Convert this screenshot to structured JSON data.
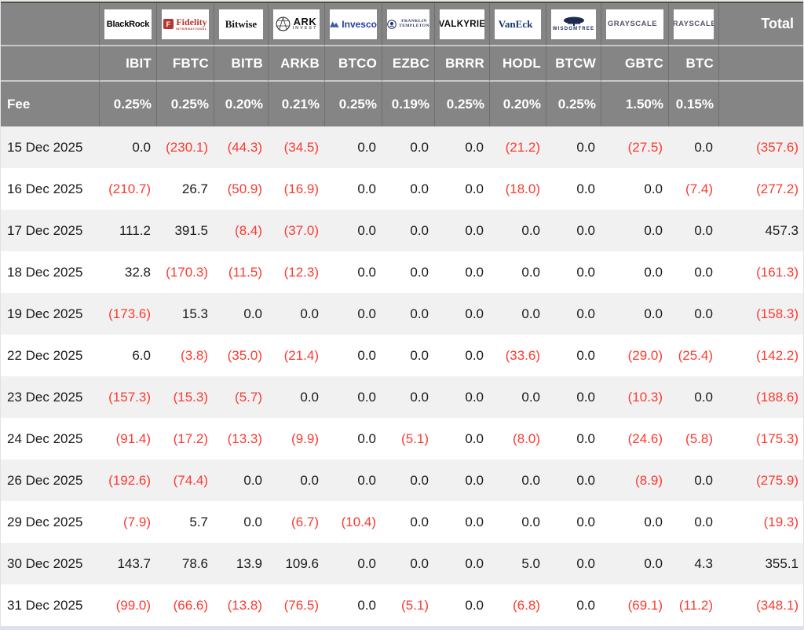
{
  "table": {
    "fee_label": "Fee",
    "total_label": "Total",
    "negative_color": "#fb3a30",
    "header_bg": "#858585",
    "columns": [
      {
        "ticker": "IBIT",
        "fee": "0.25%",
        "issuer": "BlackRock",
        "logo": {
          "style": "blackrock",
          "lines": [
            "BlackRock"
          ]
        }
      },
      {
        "ticker": "FBTC",
        "fee": "0.25%",
        "issuer": "Fidelity",
        "logo": {
          "style": "fidelity",
          "lines": [
            "F",
            "Fidelity",
            "INTERNATIONAL"
          ]
        }
      },
      {
        "ticker": "BITB",
        "fee": "0.20%",
        "issuer": "Bitwise",
        "logo": {
          "style": "bitwise",
          "lines": [
            "Bitwise"
          ]
        }
      },
      {
        "ticker": "ARKB",
        "fee": "0.21%",
        "issuer": "ARK Invest",
        "logo": {
          "style": "ark",
          "lines": [
            "ARK",
            "INVEST"
          ]
        }
      },
      {
        "ticker": "BTCO",
        "fee": "0.25%",
        "issuer": "Invesco",
        "logo": {
          "style": "invesco",
          "lines": [
            "Invesco"
          ]
        }
      },
      {
        "ticker": "EZBC",
        "fee": "0.19%",
        "issuer": "Franklin Templeton",
        "logo": {
          "style": "franklin",
          "lines": [
            "FRANKLIN",
            "TEMPLETON"
          ]
        }
      },
      {
        "ticker": "BRRR",
        "fee": "0.25%",
        "issuer": "Valkyrie",
        "logo": {
          "style": "valkyrie",
          "lines": [
            "VALKYRIE"
          ]
        }
      },
      {
        "ticker": "HODL",
        "fee": "0.20%",
        "issuer": "VanEck",
        "logo": {
          "style": "vaneck",
          "lines": [
            "VanEck"
          ]
        }
      },
      {
        "ticker": "BTCW",
        "fee": "0.25%",
        "issuer": "WisdomTree",
        "logo": {
          "style": "wisdomtree",
          "lines": [
            "WISDOMTREE"
          ]
        }
      },
      {
        "ticker": "GBTC",
        "fee": "1.50%",
        "issuer": "Grayscale",
        "logo": {
          "style": "grayscale",
          "lines": [
            "GRAYSCALE"
          ]
        }
      },
      {
        "ticker": "BTC",
        "fee": "0.15%",
        "issuer": "Grayscale",
        "logo": {
          "style": "grayscale",
          "lines": [
            "GRAYSCALE"
          ]
        }
      }
    ],
    "rows": [
      {
        "date": "15 Dec 2025",
        "values": [
          "0.0",
          "(230.1)",
          "(44.3)",
          "(34.5)",
          "0.0",
          "0.0",
          "0.0",
          "(21.2)",
          "0.0",
          "(27.5)",
          "0.0"
        ],
        "total": "(357.6)"
      },
      {
        "date": "16 Dec 2025",
        "values": [
          "(210.7)",
          "26.7",
          "(50.9)",
          "(16.9)",
          "0.0",
          "0.0",
          "0.0",
          "(18.0)",
          "0.0",
          "0.0",
          "(7.4)"
        ],
        "total": "(277.2)"
      },
      {
        "date": "17 Dec 2025",
        "values": [
          "111.2",
          "391.5",
          "(8.4)",
          "(37.0)",
          "0.0",
          "0.0",
          "0.0",
          "0.0",
          "0.0",
          "0.0",
          "0.0"
        ],
        "total": "457.3"
      },
      {
        "date": "18 Dec 2025",
        "values": [
          "32.8",
          "(170.3)",
          "(11.5)",
          "(12.3)",
          "0.0",
          "0.0",
          "0.0",
          "0.0",
          "0.0",
          "0.0",
          "0.0"
        ],
        "total": "(161.3)"
      },
      {
        "date": "19 Dec 2025",
        "values": [
          "(173.6)",
          "15.3",
          "0.0",
          "0.0",
          "0.0",
          "0.0",
          "0.0",
          "0.0",
          "0.0",
          "0.0",
          "0.0"
        ],
        "total": "(158.3)"
      },
      {
        "date": "22 Dec 2025",
        "values": [
          "6.0",
          "(3.8)",
          "(35.0)",
          "(21.4)",
          "0.0",
          "0.0",
          "0.0",
          "(33.6)",
          "0.0",
          "(29.0)",
          "(25.4)"
        ],
        "total": "(142.2)"
      },
      {
        "date": "23 Dec 2025",
        "values": [
          "(157.3)",
          "(15.3)",
          "(5.7)",
          "0.0",
          "0.0",
          "0.0",
          "0.0",
          "0.0",
          "0.0",
          "(10.3)",
          "0.0"
        ],
        "total": "(188.6)"
      },
      {
        "date": "24 Dec 2025",
        "values": [
          "(91.4)",
          "(17.2)",
          "(13.3)",
          "(9.9)",
          "0.0",
          "(5.1)",
          "0.0",
          "(8.0)",
          "0.0",
          "(24.6)",
          "(5.8)"
        ],
        "total": "(175.3)"
      },
      {
        "date": "26 Dec 2025",
        "values": [
          "(192.6)",
          "(74.4)",
          "0.0",
          "0.0",
          "0.0",
          "0.0",
          "0.0",
          "0.0",
          "0.0",
          "(8.9)",
          "0.0"
        ],
        "total": "(275.9)"
      },
      {
        "date": "29 Dec 2025",
        "values": [
          "(7.9)",
          "5.7",
          "0.0",
          "(6.7)",
          "(10.4)",
          "0.0",
          "0.0",
          "0.0",
          "0.0",
          "0.0",
          "0.0"
        ],
        "total": "(19.3)"
      },
      {
        "date": "30 Dec 2025",
        "values": [
          "143.7",
          "78.6",
          "13.9",
          "109.6",
          "0.0",
          "0.0",
          "0.0",
          "5.0",
          "0.0",
          "0.0",
          "4.3"
        ],
        "total": "355.1"
      },
      {
        "date": "31 Dec 2025",
        "values": [
          "(99.0)",
          "(66.6)",
          "(13.8)",
          "(76.5)",
          "0.0",
          "(5.1)",
          "0.0",
          "(6.8)",
          "0.0",
          "(69.1)",
          "(11.2)"
        ],
        "total": "(348.1)"
      }
    ]
  }
}
